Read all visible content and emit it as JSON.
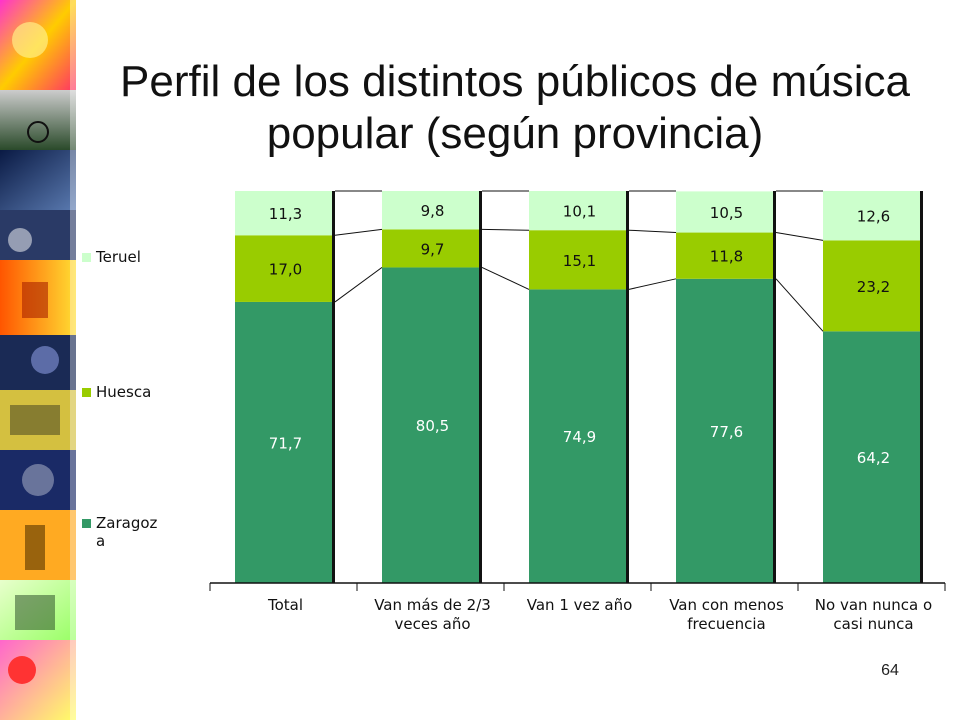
{
  "slide": {
    "title_line1": "Perfil de los distintos públicos de música",
    "title_line2": "popular (según provincia)",
    "page_number": "64"
  },
  "colors": {
    "Zaragoza": "#339966",
    "Huesca": "#99cc00",
    "Teruel": "#ccffcc"
  },
  "chart_data": {
    "type": "bar",
    "stacked": true,
    "percent": true,
    "categories": [
      [
        "Total"
      ],
      [
        "Van más de 2/3",
        "veces año"
      ],
      [
        "Van 1 vez año"
      ],
      [
        "Van con menos",
        "frecuencia"
      ],
      [
        "No van nunca o",
        "casi nunca"
      ]
    ],
    "series": [
      {
        "name": "Zaragoza",
        "values": [
          71.7,
          80.5,
          74.9,
          77.6,
          64.2
        ],
        "labels": [
          "71,7",
          "80,5",
          "74,9",
          "77,6",
          "64,2"
        ]
      },
      {
        "name": "Huesca",
        "values": [
          17.0,
          9.7,
          15.1,
          11.8,
          23.2
        ],
        "labels": [
          "17,0",
          "9,7",
          "15,1",
          "11,8",
          "23,2"
        ]
      },
      {
        "name": "Teruel",
        "values": [
          11.3,
          9.8,
          10.1,
          10.5,
          12.6
        ],
        "labels": [
          "11,3",
          "9,8",
          "10,1",
          "10,5",
          "12,6"
        ]
      }
    ],
    "legend": {
      "position": "left",
      "items": [
        {
          "series": "Teruel",
          "lines": [
            "Teruel"
          ]
        },
        {
          "series": "Huesca",
          "lines": [
            "Huesca"
          ]
        },
        {
          "series": "Zaragoza",
          "lines": [
            "Zaragoz",
            "a"
          ]
        }
      ]
    },
    "ylim": [
      0,
      100
    ],
    "grid": false,
    "series_lines": true
  }
}
